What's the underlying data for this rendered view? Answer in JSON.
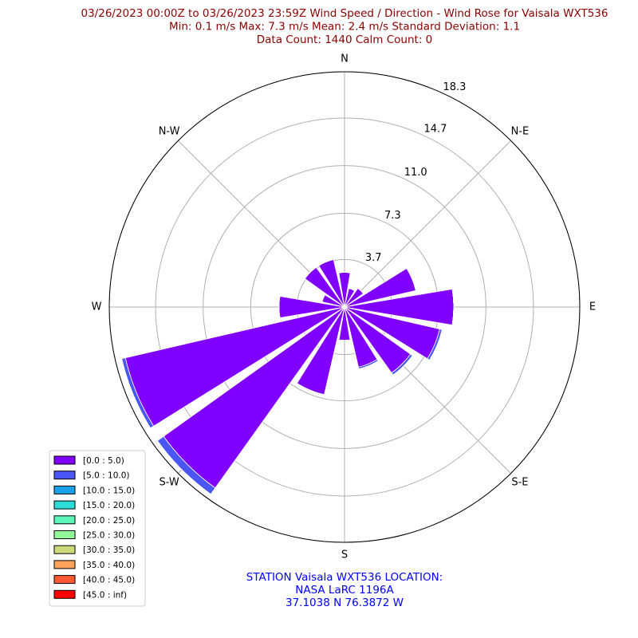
{
  "chart_data": {
    "type": "windrose",
    "title_lines": [
      "03/26/2023 00:00Z to 03/26/2023 23:59Z Wind Speed / Direction - Wind Rose for Vaisala WXT536",
      "Min: 0.1 m/s   Max: 7.3 m/s   Mean: 2.4 m/s  Standard Deviation: 1.1",
      "Data Count: 1440  Calm Count:  0"
    ],
    "footer_lines": [
      "STATION Vaisala WXT536 LOCATION:",
      "NASA LaRC 1196A",
      "37.1038 N 76.3872 W"
    ],
    "categories": [
      "N",
      null,
      "N-E",
      null,
      "E",
      null,
      "S-E",
      null,
      "S",
      null,
      "S-W",
      null,
      "W",
      null,
      "N-W",
      null
    ],
    "ylim": [
      0,
      18.3
    ],
    "yticks": [
      3.7,
      7.3,
      {
        "value": 11,
        "label": "11.0"
      },
      14.7,
      18.3
    ],
    "grid": true,
    "legend": "lower left",
    "series": [
      {
        "name": "[0.0 : 5.0)",
        "color": "#7f00ff",
        "values": [
          2.7,
          1.5,
          1.8,
          5.7,
          8.5,
          7.6,
          6.3,
          4.8,
          2.6,
          7.0,
          17.3,
          17.5,
          5.1,
          1.8,
          3.8,
          3.8
        ]
      },
      {
        "name": "[5.0 : 10.0)",
        "color": "#4a56f5",
        "values": [
          0,
          0,
          0,
          0,
          0,
          0.2,
          0.2,
          0.15,
          0,
          0,
          0.6,
          0.3,
          0,
          0,
          0,
          0
        ]
      },
      {
        "name": "[10.0 : 15.0)",
        "color": "#18a0e8",
        "values": [
          0,
          0,
          0,
          0,
          0,
          0,
          0,
          0,
          0,
          0,
          0,
          0,
          0,
          0,
          0,
          0
        ]
      },
      {
        "name": "[15.0 : 20.0)",
        "color": "#2adbd8",
        "values": [
          0,
          0,
          0,
          0,
          0,
          0,
          0,
          0,
          0,
          0,
          0,
          0,
          0,
          0,
          0,
          0
        ]
      },
      {
        "name": "[20.0 : 25.0)",
        "color": "#5cf6b8",
        "values": [
          0,
          0,
          0,
          0,
          0,
          0,
          0,
          0,
          0,
          0,
          0,
          0,
          0,
          0,
          0,
          0
        ]
      },
      {
        "name": "[25.0 : 30.0)",
        "color": "#92f99a",
        "values": [
          0,
          0,
          0,
          0,
          0,
          0,
          0,
          0,
          0,
          0,
          0,
          0,
          0,
          0,
          0,
          0
        ]
      },
      {
        "name": "[30.0 : 35.0)",
        "color": "#cdd97a",
        "values": [
          0,
          0,
          0,
          0,
          0,
          0,
          0,
          0,
          0,
          0,
          0,
          0,
          0,
          0,
          0,
          0
        ]
      },
      {
        "name": "[35.0 : 40.0)",
        "color": "#fca25a",
        "values": [
          0,
          0,
          0,
          0,
          0,
          0,
          0,
          0,
          0,
          0,
          0,
          0,
          0,
          0,
          0,
          0
        ]
      },
      {
        "name": "[40.0 : 45.0)",
        "color": "#ff5a32",
        "values": [
          0,
          0,
          0,
          0,
          0,
          0,
          0,
          0,
          0,
          0,
          0,
          0,
          0,
          0,
          0,
          0
        ]
      },
      {
        "name": "[45.0 : inf)",
        "color": "#ff0000",
        "values": [
          0,
          0,
          0,
          0,
          0,
          0,
          0,
          0,
          0,
          0,
          0,
          0,
          0,
          0,
          0,
          0
        ]
      }
    ]
  }
}
